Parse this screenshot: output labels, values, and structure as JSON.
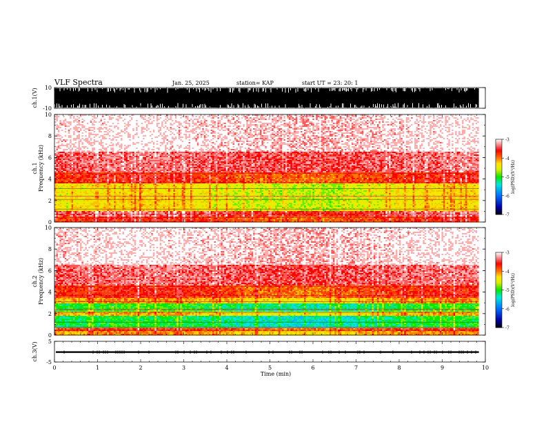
{
  "header": {
    "title": "VLF Spectra",
    "date": "Jan. 25, 2025",
    "station": "station= KAP",
    "start": "start  UT  =   23: 20: 1"
  },
  "chart_data": [
    {
      "type": "line",
      "ylabel": "ch.1(V)",
      "ylim": [
        -10,
        10
      ],
      "yticks": [
        "10",
        "-10"
      ],
      "xlim": [
        0,
        10
      ]
    },
    {
      "type": "heatmap",
      "ylabel": "ch.1\nFrequency  (kHz)",
      "ylabel_lines": [
        "ch.1",
        "Frequency  (kHz)"
      ],
      "ylim": [
        0,
        10
      ],
      "yticks": [
        "0",
        "2",
        "4",
        "6",
        "8",
        "10"
      ],
      "xlim": [
        0,
        10
      ],
      "data_end_min": 9.85,
      "bands": [
        {
          "from": 0.0,
          "to": 0.5,
          "level": -3.8
        },
        {
          "from": 0.5,
          "to": 1.0,
          "level": -3.5
        },
        {
          "from": 1.0,
          "to": 3.6,
          "level": -4.5
        },
        {
          "from": 3.6,
          "to": 4.6,
          "level": -3.8
        },
        {
          "from": 4.6,
          "to": 6.5,
          "level": -3.4
        },
        {
          "from": 6.5,
          "to": 10.0,
          "level": -3.1
        }
      ],
      "colorbar": {
        "label": "log(PSD)(V²/Hz)",
        "min": -7,
        "max": -3,
        "ticks": [
          "-3",
          "-4",
          "-5",
          "-6",
          "-7"
        ]
      }
    },
    {
      "type": "heatmap",
      "ylabel": "ch.2\nFrequency  (kHz)",
      "ylabel_lines": [
        "ch.2",
        "Frequency  (kHz)"
      ],
      "ylim": [
        0,
        10
      ],
      "yticks": [
        "0",
        "2",
        "4",
        "6",
        "8",
        "10"
      ],
      "xlim": [
        0,
        10
      ],
      "data_end_min": 9.85,
      "bands": [
        {
          "from": 0.0,
          "to": 0.4,
          "level": -4.2
        },
        {
          "from": 0.4,
          "to": 0.7,
          "level": -3.8
        },
        {
          "from": 0.7,
          "to": 1.8,
          "level": -5.2
        },
        {
          "from": 1.8,
          "to": 2.2,
          "level": -4.3
        },
        {
          "from": 2.2,
          "to": 3.0,
          "level": -5.1
        },
        {
          "from": 3.0,
          "to": 3.5,
          "level": -4.2
        },
        {
          "from": 3.5,
          "to": 4.6,
          "level": -3.8
        },
        {
          "from": 4.6,
          "to": 6.5,
          "level": -3.4
        },
        {
          "from": 6.5,
          "to": 10.0,
          "level": -3.1
        }
      ],
      "colorbar": {
        "label": "log(PSD)(V²/Hz)",
        "min": -7,
        "max": -3,
        "ticks": [
          "-3",
          "-4",
          "-5",
          "-6",
          "-7"
        ]
      }
    },
    {
      "type": "line",
      "ylabel": "ch.3(V)",
      "ylim": [
        -5,
        5
      ],
      "yticks": [
        "5",
        "-5"
      ],
      "xlim": [
        0,
        10
      ],
      "xlabel": "Time  (min)",
      "xticks": [
        "0",
        "1",
        "2",
        "3",
        "4",
        "5",
        "6",
        "7",
        "8",
        "9",
        "10"
      ],
      "level_band": [
        -0.6,
        0.2
      ]
    }
  ]
}
